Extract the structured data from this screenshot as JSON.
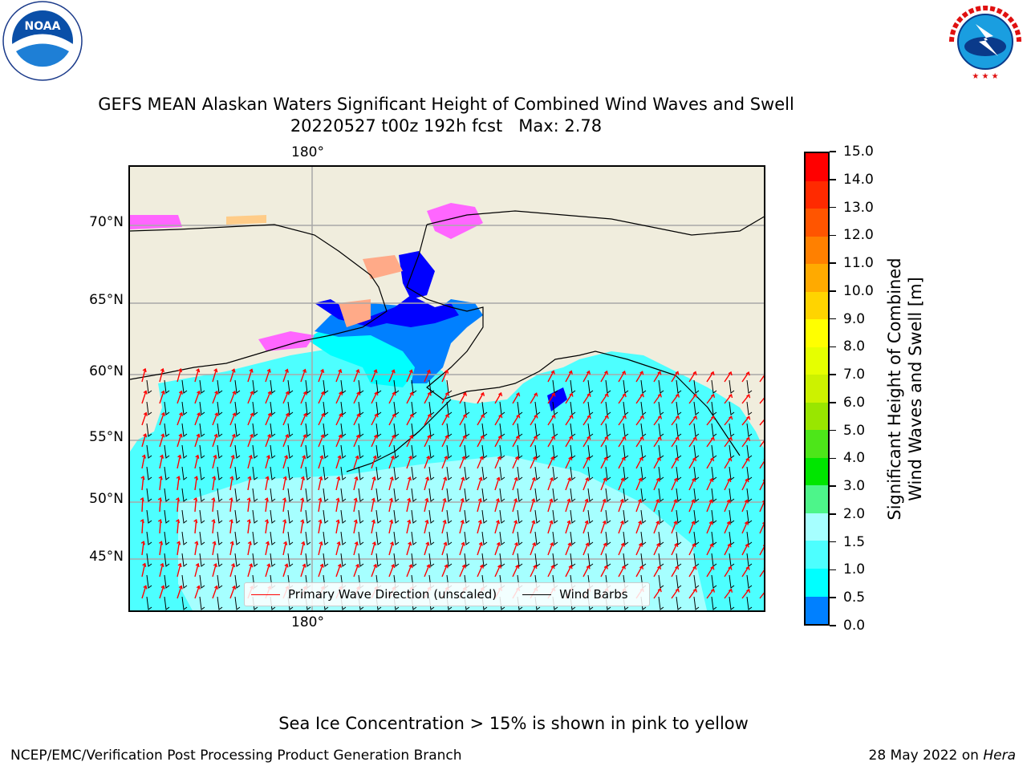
{
  "header": {
    "title_line1": "GEFS MEAN Alaskan Waters Significant Height of Combined Wind Waves and Swell",
    "title_line2": "20220527 t00z 192h fcst   Max: 2.78"
  },
  "logos": {
    "left": {
      "icon": "noaa-logo",
      "text": "NOAA",
      "ring_text": "NATIONAL OCEANIC AND ATMOSPHERIC ADMINISTRATION · U.S. DEPARTMENT OF COMMERCE"
    },
    "right": {
      "icon": "nws-logo",
      "ring_text": "NATIONAL WEATHER SERVICE"
    }
  },
  "map": {
    "lon_label_top": "180°",
    "lon_label_bottom": "180°",
    "lat_labels": [
      "70°N",
      "65°N",
      "60°N",
      "55°N",
      "50°N",
      "45°N"
    ],
    "land_color": "#f0eddd",
    "legend": {
      "wave_label": "Primary Wave Direction (unscaled)",
      "wave_color": "#ff0000",
      "barb_label": "Wind Barbs",
      "barb_color": "#000000"
    }
  },
  "colorbar": {
    "label": "Significant Height of Combined\nWind Waves and Swell [m]",
    "ticks": [
      "15.0",
      "14.0",
      "13.0",
      "12.0",
      "11.0",
      "10.0",
      "9.0",
      "8.0",
      "7.0",
      "6.0",
      "5.0",
      "4.0",
      "3.0",
      "2.0",
      "1.5",
      "1.0",
      "0.5",
      "0.0"
    ],
    "colors": [
      "#ff0000",
      "#ff2a00",
      "#ff5500",
      "#ff8000",
      "#ffaa00",
      "#ffd400",
      "#ffff00",
      "#e6ff00",
      "#ccf200",
      "#99e600",
      "#4de619",
      "#00e600",
      "#4df58a",
      "#a6ffff",
      "#4dffff",
      "#00ffff",
      "#0080ff",
      "#0000ff"
    ]
  },
  "note": "Sea Ice Concentration > 15% is shown in pink to yellow",
  "footer": {
    "left": "NCEP/EMC/Verification Post Processing Product Generation Branch",
    "right_prefix": "28 May 2022 on ",
    "right_machine": "Hera"
  }
}
